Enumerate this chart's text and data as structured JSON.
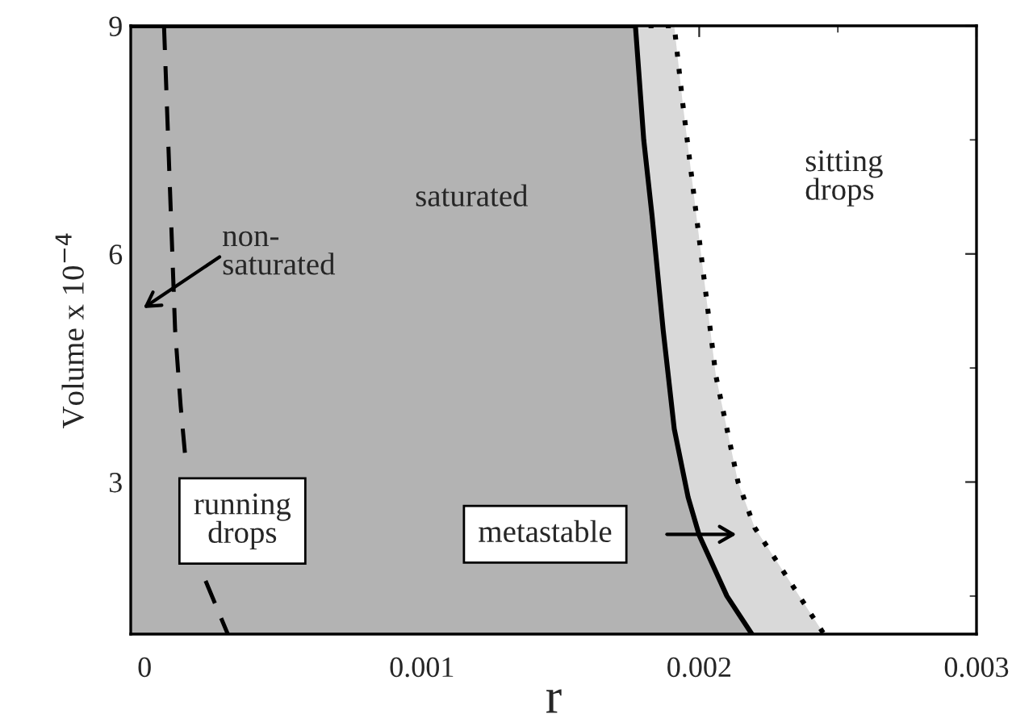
{
  "chart_data": {
    "type": "line",
    "xlabel": "r",
    "ylabel": "Volume x 10$^{−4}$",
    "xlim": [
      -5e-05,
      0.003
    ],
    "ylim": [
      1,
      9
    ],
    "xticks": [
      0,
      0.001,
      0.002,
      0.003
    ],
    "yticks": [
      3,
      6,
      9
    ],
    "grid": false,
    "series": [
      {
        "type": "area",
        "color": "#d9d9d9",
        "line_style": "dotted",
        "x": [
          -5e-05,
          0.00191,
          0.00194,
          0.00199,
          0.00206,
          0.00214,
          0.0022,
          0.00229,
          0.00245
        ],
        "values": [
          9,
          9,
          8,
          6.5,
          4.4,
          3,
          2.4,
          1.9,
          1
        ]
      },
      {
        "type": "area",
        "color": "#b3b3b3",
        "line_style": "solid",
        "x": [
          -5e-05,
          0.00177,
          0.0018,
          0.00183,
          0.00187,
          0.00191,
          0.00196,
          0.002,
          0.0021,
          0.00219
        ],
        "values": [
          9,
          9,
          7.5,
          6.5,
          5,
          3.7,
          2.8,
          2.3,
          1.5,
          1
        ]
      },
      {
        "color": "#000000",
        "line_style": "dashed",
        "x": [
          7e-05,
          8e-05,
          9e-05,
          0.0001,
          0.00011,
          0.00013,
          0.00015,
          0.00016,
          0.0002,
          0.00022,
          0.0003
        ],
        "values": [
          9,
          8,
          7,
          6,
          5,
          4,
          3.2,
          null,
          null,
          1.7,
          1
        ]
      }
    ],
    "annotations": [
      "saturated",
      "non-\nsaturated",
      "sitting\ndrops",
      "running\ndrops",
      "metastable"
    ]
  }
}
